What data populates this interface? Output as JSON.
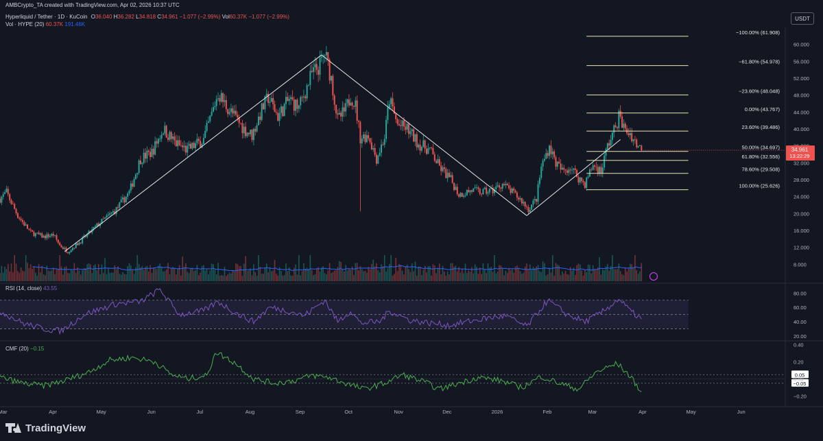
{
  "header": {
    "created_by": "AMBCrypto_TA created with TradingView.com, Apr 02, 2026 10:37 UTC",
    "symbol": "Hyperliquid / Tether · 1D · KuCoin",
    "ohlc": {
      "o_label": "O",
      "o": "36.040",
      "h_label": "H",
      "h": "36.282",
      "l_label": "L",
      "l": "34.818",
      "c_label": "C",
      "c": "34.961",
      "change": "−1.077 (−2.99%)",
      "vol_label": "Vol",
      "vol": "60.37K",
      "vol_change": "−1.077 (−2.99%)"
    },
    "volume_legend": {
      "name": "Vol · HYPE (20)",
      "v1": "60.37K",
      "v2": "191.46K"
    },
    "currency": "USDT"
  },
  "colors": {
    "background": "#131722",
    "up": "#26a69a",
    "down": "#ef5350",
    "rsi": "#7e57c2",
    "cmf": "#4caf50",
    "fib": "#f0e6b6",
    "volume_ma": "#2962ff"
  },
  "chart_data": [
    {
      "type": "candlestick",
      "x_axis": {
        "labels": [
          "Mar",
          "Apr",
          "May",
          "Jun",
          "Jul",
          "Aug",
          "Sep",
          "Oct",
          "Nov",
          "Dec",
          "2026",
          "Feb",
          "Mar",
          "Apr",
          "May",
          "Jun"
        ],
        "range": [
          "2025-03-01",
          "2026-06-30"
        ]
      },
      "y_axis": {
        "ticks": [
          "60.000",
          "56.000",
          "52.000",
          "48.000",
          "44.000",
          "40.000",
          "36.000",
          "32.000",
          "28.000",
          "24.000",
          "20.000",
          "16.000",
          "12.000",
          "8.000"
        ],
        "ylim": [
          4,
          64
        ]
      },
      "price_path": [
        [
          "2025-03-01",
          23.5
        ],
        [
          "2025-03-05",
          25.0
        ],
        [
          "2025-03-12",
          19.5
        ],
        [
          "2025-03-20",
          15.5
        ],
        [
          "2025-03-28",
          14.5
        ],
        [
          "2025-04-03",
          15.0
        ],
        [
          "2025-04-07",
          12.5
        ],
        [
          "2025-04-12",
          11.0
        ],
        [
          "2025-04-20",
          13.5
        ],
        [
          "2025-05-01",
          17.5
        ],
        [
          "2025-05-12",
          21.0
        ],
        [
          "2025-05-20",
          25.0
        ],
        [
          "2025-05-27",
          33.0
        ],
        [
          "2025-06-03",
          34.5
        ],
        [
          "2025-06-10",
          40.0
        ],
        [
          "2025-06-18",
          36.5
        ],
        [
          "2025-06-25",
          35.0
        ],
        [
          "2025-07-05",
          37.5
        ],
        [
          "2025-07-10",
          43.5
        ],
        [
          "2025-07-14",
          48.5
        ],
        [
          "2025-07-18",
          46.0
        ],
        [
          "2025-07-25",
          42.5
        ],
        [
          "2025-07-30",
          40.0
        ],
        [
          "2025-08-04",
          38.5
        ],
        [
          "2025-08-10",
          44.5
        ],
        [
          "2025-08-14",
          47.5
        ],
        [
          "2025-08-20",
          43.0
        ],
        [
          "2025-08-27",
          47.0
        ],
        [
          "2025-09-02",
          45.0
        ],
        [
          "2025-09-10",
          53.0
        ],
        [
          "2025-09-15",
          55.0
        ],
        [
          "2025-09-18",
          58.0
        ],
        [
          "2025-09-22",
          52.0
        ],
        [
          "2025-09-26",
          42.0
        ],
        [
          "2025-10-01",
          44.5
        ],
        [
          "2025-10-04",
          48.0
        ],
        [
          "2025-10-07",
          45.5
        ],
        [
          "2025-10-10",
          38.0
        ],
        [
          "2025-10-15",
          38.5
        ],
        [
          "2025-10-20",
          33.0
        ],
        [
          "2025-10-25",
          38.0
        ],
        [
          "2025-10-28",
          47.0
        ],
        [
          "2025-11-02",
          41.0
        ],
        [
          "2025-11-08",
          40.0
        ],
        [
          "2025-11-15",
          36.5
        ],
        [
          "2025-11-22",
          35.0
        ],
        [
          "2025-11-28",
          31.0
        ],
        [
          "2025-12-05",
          28.0
        ],
        [
          "2025-12-10",
          24.5
        ],
        [
          "2025-12-18",
          25.5
        ],
        [
          "2025-12-24",
          25.0
        ],
        [
          "2025-12-31",
          25.5
        ],
        [
          "2026-01-06",
          27.0
        ],
        [
          "2026-01-12",
          25.0
        ],
        [
          "2026-01-18",
          23.0
        ],
        [
          "2026-01-22",
          21.0
        ],
        [
          "2026-01-27",
          23.5
        ],
        [
          "2026-01-30",
          31.0
        ],
        [
          "2026-02-04",
          36.0
        ],
        [
          "2026-02-08",
          32.0
        ],
        [
          "2026-02-12",
          30.0
        ],
        [
          "2026-02-17",
          31.0
        ],
        [
          "2026-02-22",
          28.5
        ],
        [
          "2026-02-26",
          27.0
        ],
        [
          "2026-03-03",
          31.5
        ],
        [
          "2026-03-08",
          30.0
        ],
        [
          "2026-03-12",
          36.0
        ],
        [
          "2026-03-16",
          39.5
        ],
        [
          "2026-03-19",
          43.0
        ],
        [
          "2026-03-23",
          39.5
        ],
        [
          "2026-03-26",
          39.0
        ],
        [
          "2026-03-29",
          37.0
        ],
        [
          "2026-04-02",
          34.96
        ]
      ],
      "trend_lines": [
        {
          "from": [
            "2025-04-10",
            11.0
          ],
          "to": [
            "2025-09-16",
            57.5
          ]
        },
        {
          "from": [
            "2025-09-16",
            57.5
          ],
          "to": [
            "2026-01-21",
            19.5
          ]
        },
        {
          "from": [
            "2026-01-21",
            19.5
          ],
          "to": [
            "2026-03-20",
            37.5
          ]
        }
      ],
      "fib_levels": [
        {
          "label": "−100.00% (61.908)",
          "value": 61.908
        },
        {
          "label": "−61.80% (54.978)",
          "value": 54.978
        },
        {
          "label": "−23.60% (48.048)",
          "value": 48.048
        },
        {
          "label": "0.00% (43.767)",
          "value": 43.767
        },
        {
          "label": "23.60% (39.486)",
          "value": 39.486
        },
        {
          "label": "50.00% (34.697)",
          "value": 34.697
        },
        {
          "label": "61.80% (32.556)",
          "value": 32.556
        },
        {
          "label": "78.60% (29.508)",
          "value": 29.508
        },
        {
          "label": "100.00% (25.626)",
          "value": 25.626
        }
      ],
      "fib_range": [
        "2026-02-27",
        "2026-05-01"
      ],
      "last_price": {
        "value": 34.961,
        "label": "34.961",
        "countdown": "13:22:29"
      }
    },
    {
      "type": "line",
      "name": "RSI (14, close)",
      "legend_value": "43.55",
      "y_ticks": [
        "80.00",
        "60.00",
        "40.00",
        "20.00"
      ],
      "ylim": [
        17,
        87
      ],
      "bands": [
        70,
        50,
        30
      ],
      "points": [
        [
          "2025-03-01",
          55
        ],
        [
          "2025-03-15",
          38
        ],
        [
          "2025-03-28",
          30
        ],
        [
          "2025-04-08",
          27
        ],
        [
          "2025-04-22",
          50
        ],
        [
          "2025-05-12",
          65
        ],
        [
          "2025-05-27",
          68
        ],
        [
          "2025-06-08",
          85
        ],
        [
          "2025-06-20",
          50
        ],
        [
          "2025-07-05",
          55
        ],
        [
          "2025-07-14",
          68
        ],
        [
          "2025-07-25",
          52
        ],
        [
          "2025-08-05",
          40
        ],
        [
          "2025-08-15",
          60
        ],
        [
          "2025-08-27",
          55
        ],
        [
          "2025-09-05",
          48
        ],
        [
          "2025-09-18",
          70
        ],
        [
          "2025-09-26",
          40
        ],
        [
          "2025-10-04",
          55
        ],
        [
          "2025-10-10",
          38
        ],
        [
          "2025-10-22",
          40
        ],
        [
          "2025-10-28",
          55
        ],
        [
          "2025-11-10",
          42
        ],
        [
          "2025-11-22",
          38
        ],
        [
          "2025-12-05",
          35
        ],
        [
          "2025-12-15",
          40
        ],
        [
          "2025-12-28",
          45
        ],
        [
          "2026-01-08",
          48
        ],
        [
          "2026-01-21",
          33
        ],
        [
          "2026-02-03",
          70
        ],
        [
          "2026-02-15",
          50
        ],
        [
          "2026-02-26",
          40
        ],
        [
          "2026-03-08",
          52
        ],
        [
          "2026-03-19",
          72
        ],
        [
          "2026-03-26",
          55
        ],
        [
          "2026-04-02",
          43.55
        ]
      ]
    },
    {
      "type": "line",
      "name": "CMF (20)",
      "legend_value": "−0.15",
      "y_ticks": [
        "0.40",
        "0.20",
        "0.00",
        "−0.20"
      ],
      "ylim": [
        -0.3,
        0.42
      ],
      "ref_lines": [
        {
          "value": 0.05,
          "label": "0.05"
        },
        {
          "value": -0.05,
          "label": "−0.05"
        }
      ],
      "points": [
        [
          "2025-03-01",
          0.02
        ],
        [
          "2025-03-15",
          -0.05
        ],
        [
          "2025-03-28",
          -0.08
        ],
        [
          "2025-04-10",
          -0.02
        ],
        [
          "2025-04-25",
          0.08
        ],
        [
          "2025-05-08",
          0.22
        ],
        [
          "2025-05-22",
          0.25
        ],
        [
          "2025-06-05",
          0.2
        ],
        [
          "2025-06-15",
          0.05
        ],
        [
          "2025-06-25",
          0.0
        ],
        [
          "2025-07-08",
          0.05
        ],
        [
          "2025-07-12",
          0.32
        ],
        [
          "2025-07-25",
          0.18
        ],
        [
          "2025-08-05",
          0.0
        ],
        [
          "2025-08-18",
          -0.05
        ],
        [
          "2025-08-30",
          -0.02
        ],
        [
          "2025-09-10",
          0.04
        ],
        [
          "2025-09-20",
          0.02
        ],
        [
          "2025-10-01",
          -0.05
        ],
        [
          "2025-10-12",
          -0.12
        ],
        [
          "2025-10-25",
          -0.05
        ],
        [
          "2025-11-05",
          0.05
        ],
        [
          "2025-11-18",
          -0.03
        ],
        [
          "2025-11-28",
          -0.12
        ],
        [
          "2025-12-10",
          -0.05
        ],
        [
          "2025-12-22",
          0.02
        ],
        [
          "2026-01-05",
          -0.02
        ],
        [
          "2026-01-18",
          -0.1
        ],
        [
          "2026-01-30",
          0.03
        ],
        [
          "2026-02-10",
          -0.05
        ],
        [
          "2026-02-22",
          -0.12
        ],
        [
          "2026-03-05",
          0.08
        ],
        [
          "2026-03-18",
          0.18
        ],
        [
          "2026-03-26",
          0.03
        ],
        [
          "2026-04-02",
          -0.15
        ]
      ]
    }
  ]
}
